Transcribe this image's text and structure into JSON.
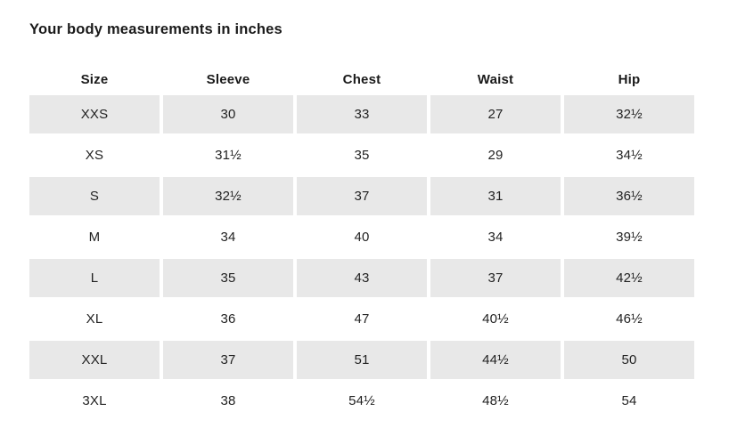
{
  "page": {
    "title": "Your body measurements in inches"
  },
  "table": {
    "columns": [
      "Size",
      "Sleeve",
      "Chest",
      "Waist",
      "Hip"
    ],
    "rows": [
      {
        "values": [
          "XXS",
          "30",
          "33",
          "27",
          "32½"
        ],
        "shaded": true
      },
      {
        "values": [
          "XS",
          "31½",
          "35",
          "29",
          "34½"
        ],
        "shaded": false
      },
      {
        "values": [
          "S",
          "32½",
          "37",
          "31",
          "36½"
        ],
        "shaded": true
      },
      {
        "values": [
          "M",
          "34",
          "40",
          "34",
          "39½"
        ],
        "shaded": false
      },
      {
        "values": [
          "L",
          "35",
          "43",
          "37",
          "42½"
        ],
        "shaded": true
      },
      {
        "values": [
          "XL",
          "36",
          "47",
          "40½",
          "46½"
        ],
        "shaded": false
      },
      {
        "values": [
          "XXL",
          "37",
          "51",
          "44½",
          "50"
        ],
        "shaded": true
      },
      {
        "values": [
          "3XL",
          "38",
          "54½",
          "48½",
          "54"
        ],
        "shaded": false
      }
    ]
  },
  "colors": {
    "background": "#ffffff",
    "row_shade": "#e8e8e8",
    "text": "#222222",
    "heading_text": "#1a1a1a"
  }
}
